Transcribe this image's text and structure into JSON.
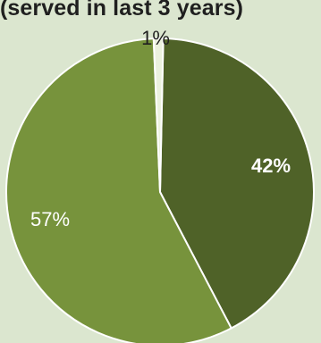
{
  "chart_data": {
    "type": "pie",
    "title": "",
    "subtitle": "(served in last 3 years)",
    "slices": [
      {
        "label": "42%",
        "value": 42,
        "color": "#4f6228"
      },
      {
        "label": "57%",
        "value": 57,
        "color": "#77933c"
      },
      {
        "label": "1%",
        "value": 1,
        "color": "#ebf1de"
      }
    ],
    "label_colors": {
      "42%": "#ffffff",
      "57%": "#ffffff",
      "1%": "#1f1f1f"
    },
    "border_color": "#ffffff",
    "legend": "none"
  }
}
